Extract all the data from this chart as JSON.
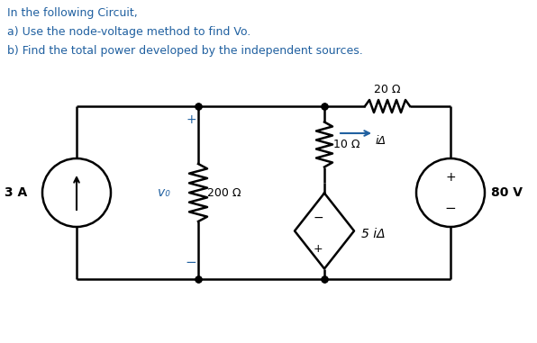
{
  "title_line1": "In the following Circuit,",
  "title_line2": "a) Use the node-voltage method to find Vo.",
  "title_line3": "b) Find the total power developed by the independent sources.",
  "text_color": "#2060a0",
  "circuit_color": "#000000",
  "bg_color": "#ffffff",
  "resistor_20_label": "20 Ω",
  "resistor_10_label": "10 Ω",
  "resistor_200_label": "200 Ω",
  "current_source_label": "3 A",
  "voltage_source_label": "80 V",
  "dep_source_label": "5 iΔ",
  "current_label": "iΔ",
  "vo_label": "v₀",
  "figsize": [
    5.96,
    3.81
  ],
  "dpi": 100
}
